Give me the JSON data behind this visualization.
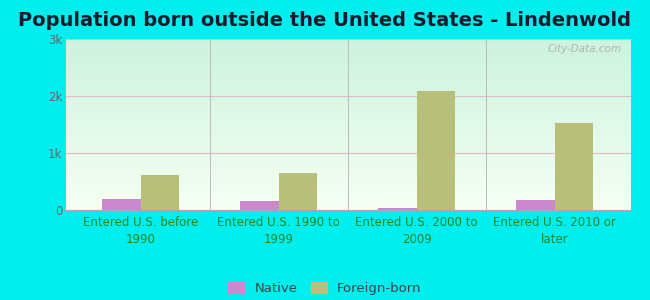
{
  "title": "Population born outside the United States - Lindenwold",
  "categories": [
    "Entered U.S. before\n1990",
    "Entered U.S. 1990 to\n1999",
    "Entered U.S. 2000 to\n2009",
    "Entered U.S. 2010 or\nlater"
  ],
  "native_values": [
    200,
    150,
    30,
    180
  ],
  "foreign_values": [
    620,
    650,
    2080,
    1530
  ],
  "native_color": "#cc88cc",
  "foreign_color": "#b8bf7a",
  "ylim": [
    0,
    3000
  ],
  "yticks": [
    0,
    1000,
    2000,
    3000
  ],
  "ytick_labels": [
    "0",
    "1k",
    "2k",
    "3k"
  ],
  "grad_top": "#cceedd",
  "grad_bottom": "#f0fdf0",
  "outer_background": "#00eeee",
  "title_fontsize": 14,
  "axis_label_fontsize": 8.5,
  "legend_fontsize": 9.5,
  "bar_width": 0.28,
  "watermark": "City-Data.com",
  "title_color": "#1a1a2e",
  "tick_color_x": "#228822",
  "tick_color_y": "#666666",
  "grid_color": "#ddeecc",
  "divider_color": "#bbbbbb"
}
